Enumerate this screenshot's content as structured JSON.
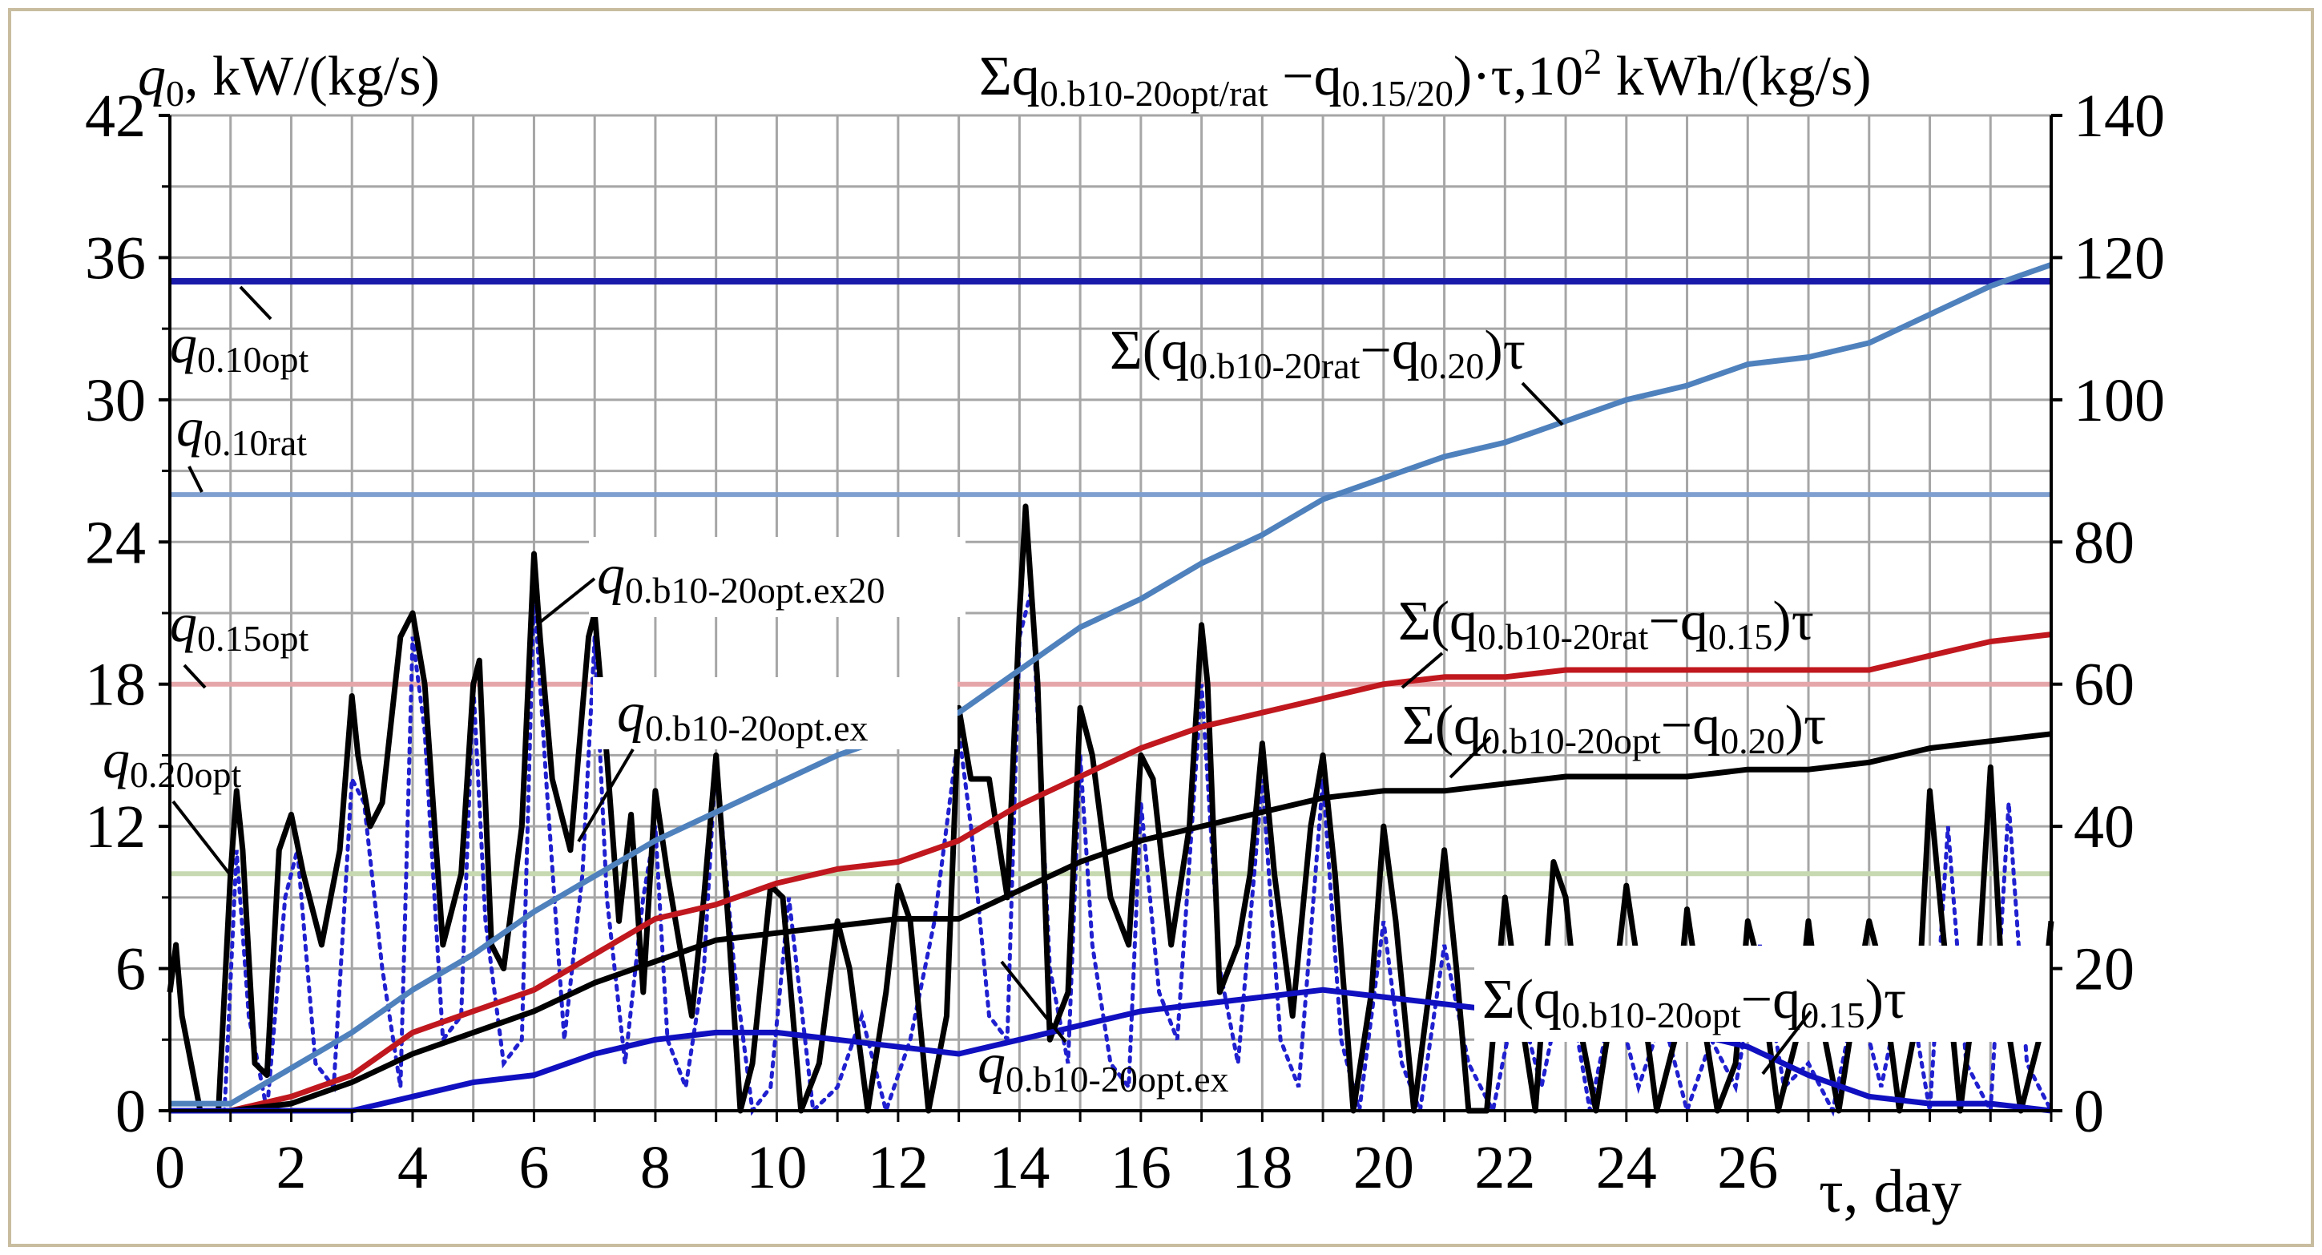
{
  "chart_data": {
    "type": "line",
    "left_axis": {
      "title_main": "q",
      "title_sub": "0",
      "title_unit": ", kW/(kg/s)",
      "ylim": [
        0,
        42
      ],
      "ticks": [
        "0",
        "6",
        "12",
        "18",
        "24",
        "30",
        "36",
        "42"
      ]
    },
    "right_axis": {
      "title_prefix": "Σq",
      "title_sub1": "0.b10-20opt/rat",
      "title_mid": " −q",
      "title_sub2": "0.15/20",
      "title_tail": ")·τ,10",
      "title_sup": "2",
      "title_unit": " kWh/(kg/s)",
      "ylim": [
        0,
        140
      ],
      "ticks": [
        "0",
        "20",
        "40",
        "60",
        "80",
        "100",
        "120",
        "140"
      ]
    },
    "x_axis": {
      "label": "τ, day",
      "xlim": [
        0,
        31
      ],
      "ticks": [
        "0",
        "2",
        "4",
        "6",
        "8",
        "10",
        "12",
        "14",
        "16",
        "18",
        "20",
        "22",
        "24",
        "26"
      ]
    },
    "constant_lines": [
      {
        "name": "q0.10opt",
        "value": 35,
        "color": "#1a1aaa",
        "label_main": "q",
        "label_sub": "0.10opt"
      },
      {
        "name": "q0.10rat",
        "value": 26,
        "color": "#7f9fd0",
        "label_main": "q",
        "label_sub": "0.10rat"
      },
      {
        "name": "q0.15opt",
        "value": 18,
        "color": "#e5a6aa",
        "label_main": "q",
        "label_sub": "0.15opt"
      },
      {
        "name": "q0.20opt",
        "value": 10,
        "color": "#c6d9b0",
        "label_main": "q",
        "label_sub": "0.20opt"
      }
    ],
    "cumulative_series": [
      {
        "name": "Σ(q0.b10-20rat−q0.20)τ",
        "color": "#4f81bd",
        "label_parts": [
          "Σ(q",
          "0.b10-20rat",
          "−q",
          "0.20",
          ")τ"
        ],
        "x": [
          0,
          1,
          2,
          3,
          4,
          5,
          6,
          7,
          8,
          9,
          10,
          11,
          12,
          13,
          14,
          15,
          16,
          17,
          18,
          19,
          20,
          21,
          22,
          23,
          24,
          25,
          26,
          27,
          28,
          29,
          30,
          31
        ],
        "y": [
          1,
          1,
          6,
          11,
          17,
          22,
          28,
          33,
          38,
          42,
          46,
          50,
          53,
          56,
          62,
          68,
          72,
          77,
          81,
          86,
          89,
          92,
          94,
          97,
          100,
          102,
          105,
          106,
          108,
          112,
          116,
          119
        ]
      },
      {
        "name": "Σ(q0.b10-20rat−q0.15)τ",
        "color": "#c0181e",
        "label_parts": [
          "Σ(q",
          "0.b10-20rat",
          "−q",
          "0.15",
          ")τ"
        ],
        "x": [
          0,
          1,
          2,
          3,
          4,
          5,
          6,
          7,
          8,
          9,
          10,
          11,
          12,
          13,
          14,
          15,
          16,
          17,
          18,
          19,
          20,
          21,
          22,
          23,
          24,
          25,
          26,
          27,
          28,
          29,
          30,
          31
        ],
        "y": [
          0,
          0,
          2,
          5,
          11,
          14,
          17,
          22,
          27,
          29,
          32,
          34,
          35,
          38,
          43,
          47,
          51,
          54,
          56,
          58,
          60,
          61,
          61,
          62,
          62,
          62,
          62,
          62,
          62,
          64,
          66,
          67
        ]
      },
      {
        "name": "Σ(q0.b10-20opt−q0.20)τ",
        "color": "#000000",
        "label_parts": [
          "Σ(q",
          "0.b10-20opt",
          "−q",
          "0.20",
          ")τ"
        ],
        "x": [
          0,
          1,
          2,
          3,
          4,
          5,
          6,
          7,
          8,
          9,
          10,
          11,
          12,
          13,
          14,
          15,
          16,
          17,
          18,
          19,
          20,
          21,
          22,
          23,
          24,
          25,
          26,
          27,
          28,
          29,
          30,
          31
        ],
        "y": [
          0,
          0,
          1,
          4,
          8,
          11,
          14,
          18,
          21,
          24,
          25,
          26,
          27,
          27,
          31,
          35,
          38,
          40,
          42,
          44,
          45,
          45,
          46,
          47,
          47,
          47,
          48,
          48,
          49,
          51,
          52,
          53
        ]
      },
      {
        "name": "Σ(q0.b10-20opt−q0.15)τ",
        "color": "#1010c0",
        "label_parts": [
          "Σ(q",
          "0.b10-20opt",
          "−q",
          "0.15",
          ")τ"
        ],
        "x": [
          0,
          1,
          2,
          3,
          4,
          5,
          6,
          7,
          8,
          9,
          10,
          11,
          12,
          13,
          14,
          15,
          16,
          17,
          18,
          19,
          20,
          21,
          22,
          23,
          24,
          25,
          26,
          27,
          28,
          29,
          30,
          31
        ],
        "y": [
          0,
          0,
          0,
          0,
          2,
          4,
          5,
          8,
          10,
          11,
          11,
          10,
          9,
          8,
          10,
          12,
          14,
          15,
          16,
          17,
          16,
          15,
          14,
          13,
          12,
          11,
          9,
          5,
          2,
          1,
          1,
          0
        ]
      }
    ],
    "hourly_series": [
      {
        "name": "q0.b10-20opt.ex20",
        "color": "#000000",
        "style": "solid",
        "label_parts": [
          "q",
          "0.b10-20opt.ex20"
        ],
        "x": [
          0,
          0.1,
          0.2,
          0.5,
          0.8,
          1.0,
          1.1,
          1.2,
          1.4,
          1.6,
          1.8,
          2.0,
          2.2,
          2.5,
          2.8,
          3.0,
          3.1,
          3.3,
          3.5,
          3.8,
          4.0,
          4.2,
          4.5,
          4.8,
          5.0,
          5.1,
          5.3,
          5.5,
          5.8,
          6.0,
          6.1,
          6.3,
          6.6,
          6.9,
          7.0,
          7.2,
          7.4,
          7.6,
          7.8,
          8.0,
          8.2,
          8.4,
          8.6,
          8.8,
          9.0,
          9.2,
          9.4,
          9.6,
          9.9,
          10.1,
          10.4,
          10.7,
          11.0,
          11.2,
          11.5,
          11.8,
          12.0,
          12.2,
          12.5,
          12.8,
          13.0,
          13.2,
          13.5,
          13.8,
          14.0,
          14.1,
          14.3,
          14.5,
          14.8,
          15.0,
          15.2,
          15.5,
          15.8,
          16.0,
          16.2,
          16.5,
          16.8,
          17.0,
          17.1,
          17.3,
          17.6,
          17.8,
          18.0,
          18.2,
          18.5,
          18.8,
          19.0,
          19.2,
          19.5,
          19.8,
          20.0,
          20.2,
          20.5,
          20.8,
          21.0,
          21.2,
          21.4,
          21.7,
          22.0,
          22.2,
          22.5,
          22.8,
          23.0,
          23.2,
          23.5,
          23.8,
          24.0,
          24.2,
          24.5,
          24.8,
          25.0,
          25.2,
          25.5,
          25.8,
          26.0,
          26.2,
          26.5,
          26.8,
          27.0,
          27.2,
          27.5,
          27.8,
          28.0,
          28.2,
          28.5,
          28.8,
          29.0,
          29.2,
          29.5,
          29.8,
          30.0,
          30.2,
          30.5,
          30.8,
          31.0
        ],
        "y": [
          5,
          7,
          4,
          0,
          0,
          10,
          13.5,
          11,
          2,
          1.5,
          11,
          12.5,
          10,
          7,
          11,
          17.5,
          15,
          12,
          13,
          20,
          21,
          18,
          7,
          10,
          18,
          19,
          7,
          6,
          12,
          23.5,
          20,
          14,
          11,
          20,
          21,
          15,
          8,
          12.5,
          5,
          13.5,
          10,
          7,
          4,
          9,
          15,
          8,
          0,
          2,
          9.5,
          9,
          0,
          2,
          8,
          6,
          0,
          5,
          9.5,
          8,
          0,
          4,
          17,
          14,
          14,
          9,
          21,
          25.5,
          18,
          3,
          5,
          17,
          15,
          9,
          7,
          15,
          14,
          7,
          12,
          20.5,
          18,
          5,
          7,
          10,
          15.5,
          10,
          4,
          12,
          15,
          10,
          0,
          5,
          12,
          8,
          0,
          6,
          11,
          6,
          0,
          0,
          9,
          5,
          0,
          10.5,
          9,
          4,
          0,
          5,
          9.5,
          6,
          0,
          3,
          8.5,
          5,
          0,
          2,
          8,
          6,
          0,
          3,
          8,
          4,
          0,
          5,
          8,
          6,
          0,
          4,
          13.5,
          8,
          0,
          6,
          14.5,
          5,
          0,
          3,
          8
        ]
      },
      {
        "name": "q0.b10-20opt.ex",
        "color": "#2020d0",
        "style": "dotted",
        "label_parts": [
          "q",
          "0.b10-20opt.ex"
        ],
        "x": [
          0,
          0.5,
          0.9,
          1.1,
          1.3,
          1.6,
          1.9,
          2.1,
          2.4,
          2.7,
          3.0,
          3.2,
          3.5,
          3.8,
          4.0,
          4.2,
          4.5,
          4.8,
          5.0,
          5.2,
          5.5,
          5.8,
          6.0,
          6.2,
          6.5,
          6.8,
          7.0,
          7.2,
          7.5,
          7.8,
          8.0,
          8.2,
          8.5,
          8.8,
          9.0,
          9.3,
          9.6,
          9.9,
          10.2,
          10.6,
          11.0,
          11.4,
          11.8,
          12.2,
          12.6,
          13.0,
          13.2,
          13.5,
          13.8,
          14.0,
          14.2,
          14.5,
          14.8,
          15.0,
          15.2,
          15.5,
          15.8,
          16.0,
          16.3,
          16.6,
          17.0,
          17.3,
          17.6,
          18.0,
          18.3,
          18.6,
          19.0,
          19.3,
          19.6,
          20.0,
          20.3,
          20.6,
          21.0,
          21.4,
          21.8,
          22.2,
          22.6,
          23.0,
          23.4,
          23.8,
          24.2,
          24.6,
          25.0,
          25.4,
          25.8,
          26.2,
          26.6,
          27.0,
          27.4,
          27.8,
          28.2,
          28.6,
          29.0,
          29.3,
          29.6,
          30.0,
          30.3,
          30.6,
          31.0
        ],
        "y": [
          0,
          0,
          0,
          11,
          4,
          0,
          9,
          11,
          2,
          1,
          14,
          13,
          6,
          1,
          20,
          16,
          3,
          4,
          18,
          8,
          2,
          3,
          22,
          14,
          3,
          10,
          20,
          9,
          2,
          9,
          12,
          3,
          1,
          6,
          15,
          6,
          0,
          1,
          9,
          0,
          1,
          4,
          0,
          3,
          8,
          16,
          12,
          4,
          3,
          20,
          22,
          6,
          2,
          15,
          7,
          2,
          1,
          13,
          5,
          3,
          18,
          6,
          2,
          14,
          3,
          1,
          14,
          3,
          0,
          8,
          2,
          0,
          7,
          2,
          0,
          5,
          1,
          6,
          0,
          5,
          1,
          4,
          0,
          3,
          1,
          7,
          1,
          2,
          0,
          5,
          1,
          6,
          0,
          12,
          2,
          0,
          13,
          2,
          0
        ]
      }
    ]
  }
}
